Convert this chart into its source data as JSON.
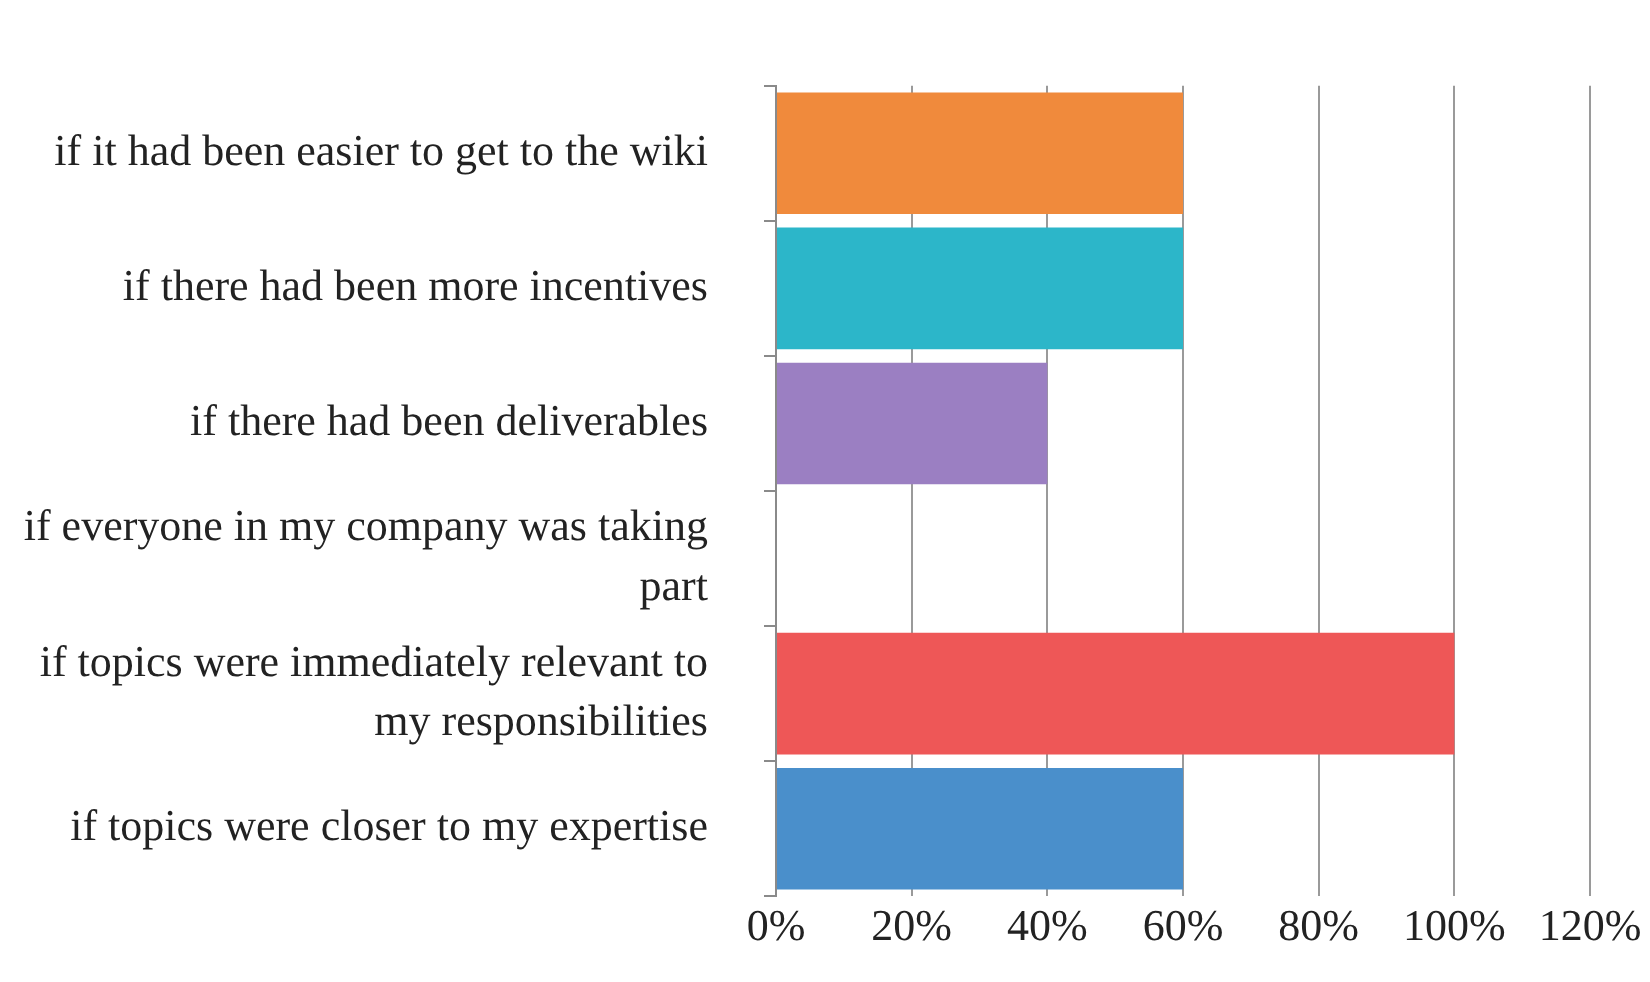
{
  "chart_data": {
    "type": "bar",
    "orientation": "horizontal",
    "categories": [
      "if it had been easier to get to the wiki",
      "if there had been more incentives",
      "if there had been deliverables",
      "if everyone in my company was taking part",
      "if topics were immediately relevant to my responsibilities",
      "if topics were closer to my expertise"
    ],
    "values": [
      60,
      60,
      40,
      0,
      100,
      60
    ],
    "colors": [
      "#f08a3c",
      "#2cb6c9",
      "#9b7fc2",
      "#7f7f7f",
      "#ee5757",
      "#4a8fcb"
    ],
    "xlim": [
      0,
      120
    ],
    "xticks": [
      {
        "value": 0,
        "label": "0%"
      },
      {
        "value": 20,
        "label": "20%"
      },
      {
        "value": 40,
        "label": "40%"
      },
      {
        "value": 60,
        "label": "60%"
      },
      {
        "value": 80,
        "label": "80%"
      },
      {
        "value": 100,
        "label": "100%"
      },
      {
        "value": 120,
        "label": "120%"
      }
    ],
    "grid": "x",
    "legend": false
  }
}
